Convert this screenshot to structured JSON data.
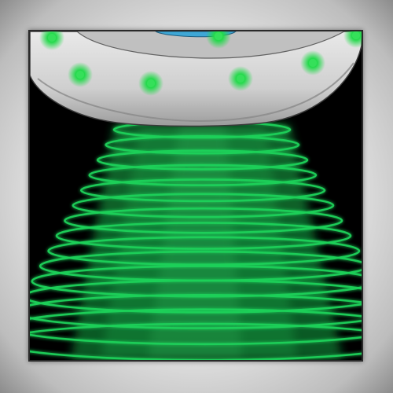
{
  "scene": {
    "subject": "ufo-with-tractor-beam",
    "colors": {
      "background": "#000000",
      "frame": "#e6e6e6",
      "hull": "#d2d2d2",
      "hull_shadow": "#9a9a9a",
      "dome": "#3fa7d6",
      "light": "#35e05a",
      "beam": "#1fd15a"
    },
    "lights_count": 7,
    "beam_rings_count": 15
  }
}
